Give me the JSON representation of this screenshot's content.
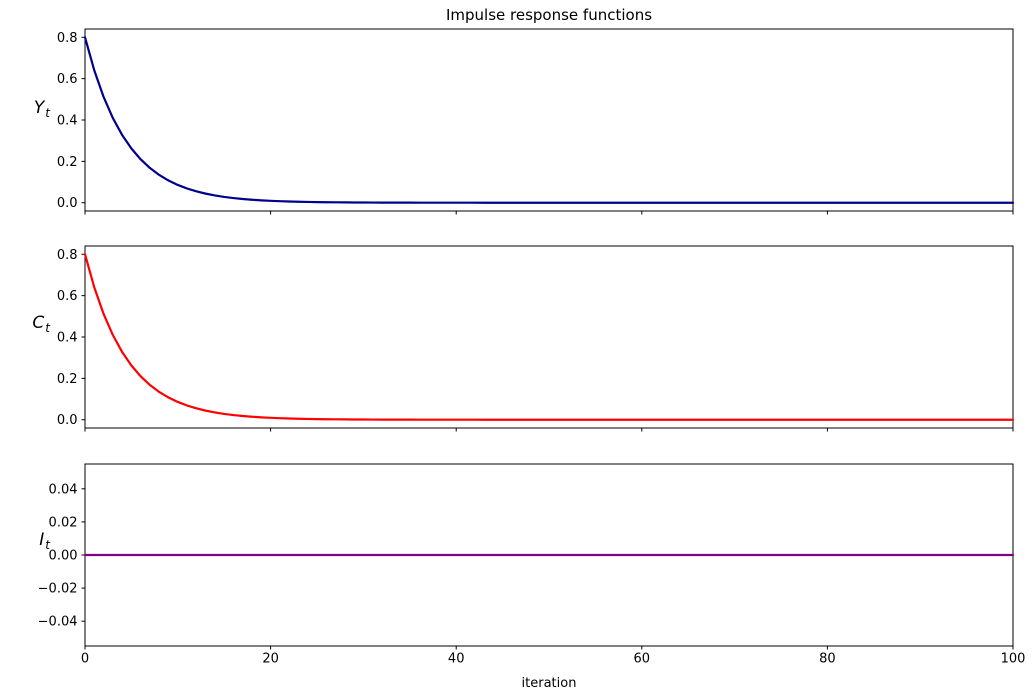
{
  "figure": {
    "title": "Impulse response functions",
    "xlabel": "iteration",
    "background_color": "#ffffff",
    "axes_color": "#000000",
    "text_color": "#000000"
  },
  "chart_data": [
    {
      "id": "Yt",
      "type": "line",
      "ylabel": {
        "base": "Y",
        "sub": "t"
      },
      "line_color": "#00008B",
      "line_width": 2.2,
      "x_start": 0,
      "x_step": 1,
      "xlim": [
        0,
        100
      ],
      "ylim": [
        -0.04,
        0.84
      ],
      "xticks": [
        0,
        20,
        40,
        60,
        80,
        100
      ],
      "xtick_labels": [
        "0",
        "20",
        "40",
        "60",
        "80",
        "100"
      ],
      "show_xtick_labels": false,
      "yticks": [
        0.0,
        0.2,
        0.4,
        0.6,
        0.8
      ],
      "ytick_labels": [
        "0.0",
        "0.2",
        "0.4",
        "0.6",
        "0.8"
      ],
      "grid": false,
      "values": [
        0.8,
        0.64,
        0.512,
        0.4096,
        0.32768,
        0.262144,
        0.209715,
        0.167772,
        0.134218,
        0.107374,
        0.085899,
        0.068719,
        0.054976,
        0.04398,
        0.035184,
        0.028147,
        0.022518,
        0.018014,
        0.014412,
        0.011529,
        0.009223,
        0.007379,
        0.005903,
        0.004722,
        0.003778,
        0.003022,
        0.002418,
        0.001934,
        0.001547,
        0.001238,
        0.00099,
        0.000792,
        0.000634,
        0.000507,
        0.000406,
        0.000325,
        0.00026,
        0.000208,
        0.000166,
        0.000133,
        0.000106,
        8.5e-05,
        6.8e-05,
        5.4e-05,
        4.4e-05,
        3.5e-05,
        2.8e-05,
        2.2e-05,
        1.8e-05,
        1.4e-05,
        1.1e-05,
        0,
        0,
        0,
        0,
        0,
        0,
        0,
        0,
        0,
        0,
        0,
        0,
        0,
        0,
        0,
        0,
        0,
        0,
        0,
        0,
        0,
        0,
        0,
        0,
        0,
        0,
        0,
        0,
        0,
        0,
        0,
        0,
        0,
        0,
        0,
        0,
        0,
        0,
        0,
        0,
        0,
        0,
        0,
        0,
        0,
        0,
        0,
        0,
        0,
        0
      ]
    },
    {
      "id": "Ct",
      "type": "line",
      "ylabel": {
        "base": "C",
        "sub": "t"
      },
      "line_color": "#FF0000",
      "line_width": 2.2,
      "x_start": 0,
      "x_step": 1,
      "xlim": [
        0,
        100
      ],
      "ylim": [
        -0.04,
        0.84
      ],
      "xticks": [
        0,
        20,
        40,
        60,
        80,
        100
      ],
      "xtick_labels": [
        "0",
        "20",
        "40",
        "60",
        "80",
        "100"
      ],
      "show_xtick_labels": false,
      "yticks": [
        0.0,
        0.2,
        0.4,
        0.6,
        0.8
      ],
      "ytick_labels": [
        "0.0",
        "0.2",
        "0.4",
        "0.6",
        "0.8"
      ],
      "grid": false,
      "values": [
        0.8,
        0.64,
        0.512,
        0.4096,
        0.32768,
        0.262144,
        0.209715,
        0.167772,
        0.134218,
        0.107374,
        0.085899,
        0.068719,
        0.054976,
        0.04398,
        0.035184,
        0.028147,
        0.022518,
        0.018014,
        0.014412,
        0.011529,
        0.009223,
        0.007379,
        0.005903,
        0.004722,
        0.003778,
        0.003022,
        0.002418,
        0.001934,
        0.001547,
        0.001238,
        0.00099,
        0.000792,
        0.000634,
        0.000507,
        0.000406,
        0.000325,
        0.00026,
        0.000208,
        0.000166,
        0.000133,
        0.000106,
        8.5e-05,
        6.8e-05,
        5.4e-05,
        4.4e-05,
        3.5e-05,
        2.8e-05,
        2.2e-05,
        1.8e-05,
        1.4e-05,
        1.1e-05,
        0,
        0,
        0,
        0,
        0,
        0,
        0,
        0,
        0,
        0,
        0,
        0,
        0,
        0,
        0,
        0,
        0,
        0,
        0,
        0,
        0,
        0,
        0,
        0,
        0,
        0,
        0,
        0,
        0,
        0,
        0,
        0,
        0,
        0,
        0,
        0,
        0,
        0,
        0,
        0,
        0,
        0,
        0,
        0,
        0,
        0,
        0,
        0,
        0,
        0
      ]
    },
    {
      "id": "It",
      "type": "line",
      "ylabel": {
        "base": "I",
        "sub": "t"
      },
      "line_color": "#800080",
      "line_width": 2.2,
      "x_start": 0,
      "x_step": 1,
      "xlim": [
        0,
        100
      ],
      "ylim": [
        -0.055,
        0.055
      ],
      "xticks": [
        0,
        20,
        40,
        60,
        80,
        100
      ],
      "xtick_labels": [
        "0",
        "20",
        "40",
        "60",
        "80",
        "100"
      ],
      "show_xtick_labels": true,
      "yticks": [
        -0.04,
        -0.02,
        0,
        0.02,
        0.04
      ],
      "ytick_labels": [
        "−0.04",
        "−0.02",
        "0.00",
        "0.02",
        "0.04"
      ],
      "grid": false,
      "values": [
        0,
        0,
        0,
        0,
        0,
        0,
        0,
        0,
        0,
        0,
        0,
        0,
        0,
        0,
        0,
        0,
        0,
        0,
        0,
        0,
        0,
        0,
        0,
        0,
        0,
        0,
        0,
        0,
        0,
        0,
        0,
        0,
        0,
        0,
        0,
        0,
        0,
        0,
        0,
        0,
        0,
        0,
        0,
        0,
        0,
        0,
        0,
        0,
        0,
        0,
        0,
        0,
        0,
        0,
        0,
        0,
        0,
        0,
        0,
        0,
        0,
        0,
        0,
        0,
        0,
        0,
        0,
        0,
        0,
        0,
        0,
        0,
        0,
        0,
        0,
        0,
        0,
        0,
        0,
        0,
        0,
        0,
        0,
        0,
        0,
        0,
        0,
        0,
        0,
        0,
        0,
        0,
        0,
        0,
        0,
        0,
        0,
        0,
        0,
        0,
        0
      ]
    }
  ]
}
